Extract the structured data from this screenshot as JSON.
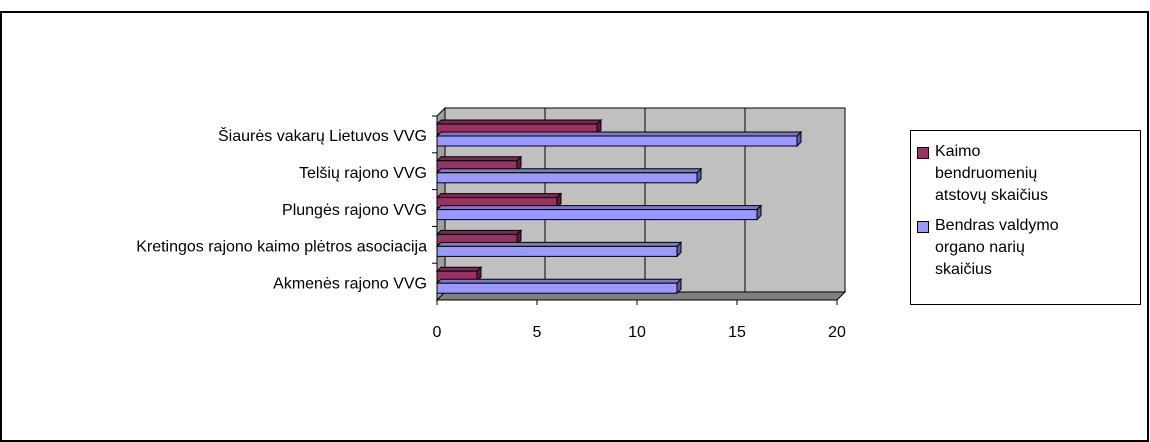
{
  "chart_data": {
    "type": "bar3d_horizontal",
    "categories": [
      "Šiaurės vakarų Lietuvos VVG",
      "Telšių rajono VVG",
      "Plungės rajono VVG",
      "Kretingos rajono kaimo plėtros asociacija",
      "Akmenės rajono VVG"
    ],
    "series": [
      {
        "name": "Kaimo bendruomenių atstovų skaičius",
        "color": "#993366",
        "values": [
          8,
          4,
          6,
          4,
          2
        ]
      },
      {
        "name": "Bendras valdymo organo narių skaičius",
        "color": "#9999ff",
        "values": [
          18,
          13,
          16,
          12,
          12
        ]
      }
    ],
    "xlim": [
      0,
      20
    ],
    "xticks": [
      0,
      5,
      10,
      15,
      20
    ],
    "grid": true,
    "legend": "right"
  }
}
